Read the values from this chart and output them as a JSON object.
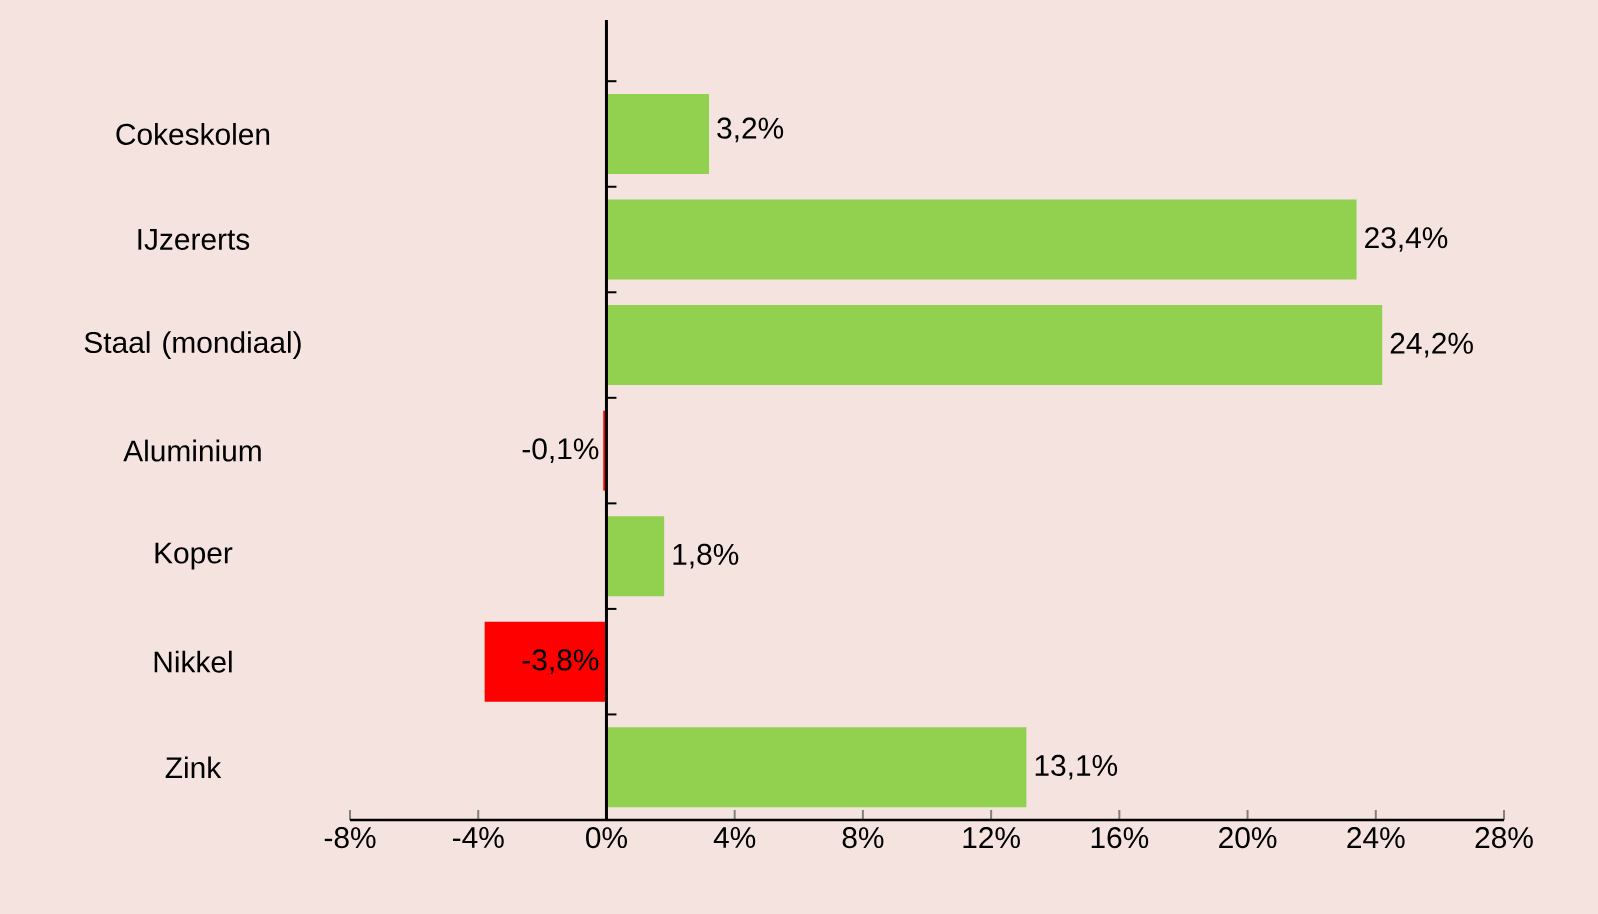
{
  "chart_data": {
    "type": "bar",
    "orientation": "horizontal",
    "categories": [
      "Cokeskolen",
      "IJzererts",
      "Staal (mondiaal)",
      "Aluminium",
      "Koper",
      "Nikkel",
      "Zink"
    ],
    "values": [
      3.2,
      23.4,
      24.2,
      -0.1,
      1.8,
      -3.8,
      13.1
    ],
    "colors": [
      "#92d050",
      "#92d050",
      "#92d050",
      "#ff0000",
      "#92d050",
      "#ff0000",
      "#92d050"
    ],
    "value_labels": [
      "3,2%",
      "23,4%",
      "24,2%",
      "-0,1%",
      "1,8%",
      "-3,8%",
      "13,1%"
    ],
    "xlim": [
      -8,
      28
    ],
    "xticks": [
      {
        "value": -8,
        "label": "-8%"
      },
      {
        "value": -4,
        "label": "-4%"
      },
      {
        "value": 0,
        "label": "0%"
      },
      {
        "value": 4,
        "label": "4%"
      },
      {
        "value": 8,
        "label": "8%"
      },
      {
        "value": 12,
        "label": "12%"
      },
      {
        "value": 16,
        "label": "16%"
      },
      {
        "value": 20,
        "label": "20%"
      },
      {
        "value": 24,
        "label": "24%"
      },
      {
        "value": 28,
        "label": "28%"
      }
    ]
  }
}
